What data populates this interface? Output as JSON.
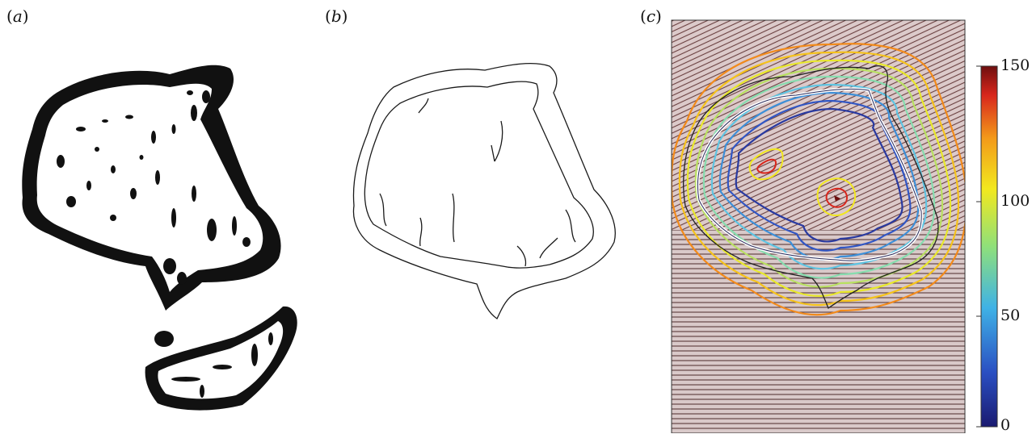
{
  "figure": {
    "panels": [
      {
        "id": "a",
        "label": "(a)"
      },
      {
        "id": "b",
        "label": "(b)"
      },
      {
        "id": "c",
        "label": "(c)"
      }
    ]
  },
  "colorbar": {
    "ticks": [
      "0",
      "50",
      "100",
      "150"
    ],
    "min": 0,
    "max": 150,
    "colormap": [
      "#1a1a70",
      "#2a4fc2",
      "#3fb2e6",
      "#8fe07a",
      "#f2e81e",
      "#f39a1a",
      "#d8261c",
      "#6e0f0f"
    ]
  }
}
